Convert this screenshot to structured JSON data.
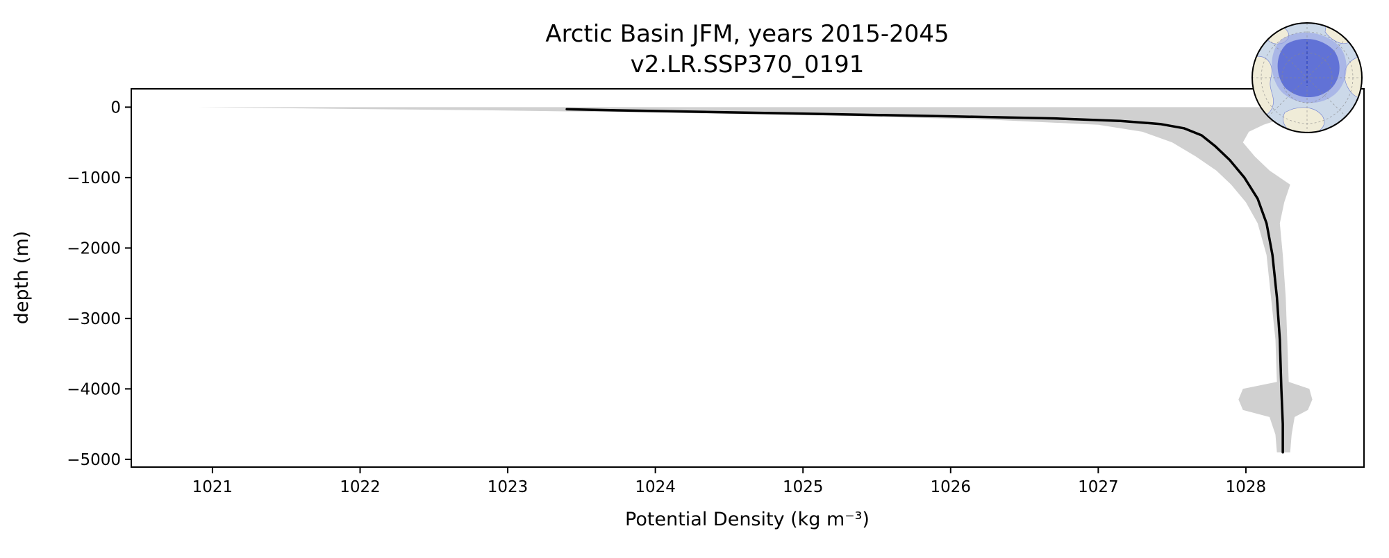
{
  "page": {
    "background": "#ffffff"
  },
  "chart_data": {
    "type": "line",
    "title_lines": [
      "Arctic Basin JFM, years 2015-2045",
      "v2.LR.SSP370_0191"
    ],
    "xlabel": "Potential Density (kg m⁻³)",
    "ylabel": "depth (m)",
    "xlim": [
      1020.45,
      1028.8
    ],
    "ylim": [
      -5110,
      260
    ],
    "xticks": [
      1021,
      1022,
      1023,
      1024,
      1025,
      1026,
      1027,
      1028
    ],
    "xtick_labels": [
      "1021",
      "1022",
      "1023",
      "1024",
      "1025",
      "1026",
      "1027",
      "1028"
    ],
    "yticks": [
      0,
      -1000,
      -2000,
      -3000,
      -4000,
      -5000
    ],
    "ytick_labels": [
      "0",
      "−1000",
      "−2000",
      "−3000",
      "−4000",
      "−5000"
    ],
    "grid": false,
    "legend": "none",
    "series": [
      {
        "name": "mean density profile",
        "color": "#000000",
        "line_width": 3.5,
        "points": [
          [
            1023.4,
            -30
          ],
          [
            1023.75,
            -45
          ],
          [
            1024.4,
            -70
          ],
          [
            1025.2,
            -100
          ],
          [
            1026.0,
            -130
          ],
          [
            1026.7,
            -160
          ],
          [
            1027.15,
            -195
          ],
          [
            1027.42,
            -240
          ],
          [
            1027.58,
            -300
          ],
          [
            1027.7,
            -400
          ],
          [
            1027.79,
            -550
          ],
          [
            1027.89,
            -750
          ],
          [
            1027.99,
            -1000
          ],
          [
            1028.08,
            -1300
          ],
          [
            1028.14,
            -1650
          ],
          [
            1028.18,
            -2100
          ],
          [
            1028.21,
            -2700
          ],
          [
            1028.23,
            -3300
          ],
          [
            1028.24,
            -4000
          ],
          [
            1028.25,
            -4500
          ],
          [
            1028.25,
            -4900
          ]
        ]
      }
    ],
    "band": {
      "name": "spread (min-max)",
      "color": "#c4c4c4",
      "opacity": 0.8,
      "points": [
        [
          0,
          1020.9,
          1028.15
        ],
        [
          -20,
          1021.7,
          1028.22
        ],
        [
          -45,
          1022.9,
          1028.28
        ],
        [
          -80,
          1024.1,
          1028.3
        ],
        [
          -125,
          1025.3,
          1028.28
        ],
        [
          -180,
          1026.3,
          1028.22
        ],
        [
          -250,
          1027.0,
          1028.12
        ],
        [
          -350,
          1027.3,
          1028.02
        ],
        [
          -500,
          1027.5,
          1027.98
        ],
        [
          -700,
          1027.66,
          1028.06
        ],
        [
          -900,
          1027.8,
          1028.16
        ],
        [
          -1100,
          1027.9,
          1028.3
        ],
        [
          -1350,
          1028.0,
          1028.26
        ],
        [
          -1650,
          1028.08,
          1028.23
        ],
        [
          -2100,
          1028.14,
          1028.25
        ],
        [
          -2700,
          1028.17,
          1028.27
        ],
        [
          -3300,
          1028.2,
          1028.28
        ],
        [
          -3900,
          1028.21,
          1028.29
        ],
        [
          -4000,
          1027.98,
          1028.43
        ],
        [
          -4150,
          1027.95,
          1028.45
        ],
        [
          -4300,
          1027.98,
          1028.42
        ],
        [
          -4400,
          1028.16,
          1028.33
        ],
        [
          -4650,
          1028.2,
          1028.31
        ],
        [
          -4900,
          1028.21,
          1028.3
        ]
      ]
    },
    "inset_map": {
      "name": "Arctic Basin region map",
      "ocean_color": "#ccd9e9",
      "land_color": "#f0ecd8",
      "coast_color": "#7988d4",
      "region_color": "#5b6bd5",
      "region_halo_color": "#98a5e6",
      "graticule_color": "#8a8a8a",
      "meridian_color": "#2a3fb8"
    }
  }
}
